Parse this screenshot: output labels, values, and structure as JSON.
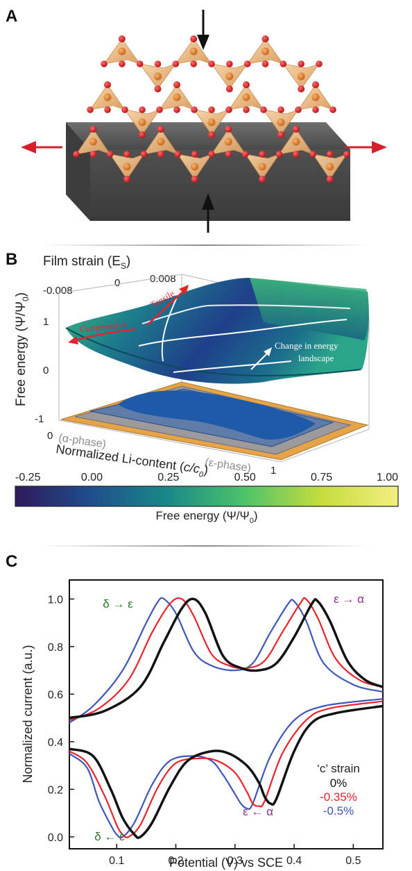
{
  "panels": {
    "a": "A",
    "b": "B",
    "c": "C"
  },
  "panel_b": {
    "film_strain_label": "Film strain (E",
    "film_strain_sub": "S",
    "film_strain_close": ")",
    "strain_ticks": [
      "-0.008",
      "0",
      "0.008"
    ],
    "z_label_main": "Free energy (Ψ/Ψ",
    "z_label_sub": "0",
    "z_label_close": ")",
    "z_ticks": [
      "1",
      "0",
      "-1"
    ],
    "x_tick_0": "0",
    "x_tick_1": "1",
    "alpha_phase": "(α-phase)",
    "epsilon_phase": "(ε-phase)",
    "x_label_main": "Normalized Li-content (",
    "x_label_var": "c/c",
    "x_label_sub": "0",
    "x_label_close": ")",
    "compressive": "Compressive",
    "tensile": "Tensile",
    "change_line1": "Change in energy",
    "change_line2": "landscape"
  },
  "colorbar": {
    "ticks": [
      "-0.25",
      "0.00",
      "0.25",
      "0.50",
      "0.75",
      "1.00"
    ],
    "label_main": "Free energy (Ψ/Ψ",
    "label_sub": "0",
    "label_close": ")",
    "colors": [
      "#2e1a5c",
      "#1f4f8c",
      "#1a8a88",
      "#4ec36a",
      "#c6dd3c",
      "#f3ef80"
    ]
  },
  "chart_data": {
    "type": "line",
    "title": "",
    "xlabel": "Potential (V) vs SCE",
    "ylabel": "Normalized current (a.u.)",
    "xlim": [
      0.02,
      0.55
    ],
    "ylim": [
      -0.05,
      1.08
    ],
    "x_ticks": [
      "0.1",
      "0.2",
      "0.3",
      "0.4",
      "0.5"
    ],
    "y_ticks": [
      "0.0",
      "0.2",
      "0.4",
      "0.6",
      "0.8",
      "1.0"
    ],
    "legend_title": "‘c’ strain",
    "annotations": {
      "delta_eps_top": "δ → ε",
      "eps_alpha_top": "ε → α",
      "delta_eps_bottom": "δ ← ε",
      "eps_alpha_bottom": "ε ← α"
    },
    "series": [
      {
        "name": "0%",
        "color": "#111111",
        "forward": [
          [
            0.02,
            0.5
          ],
          [
            0.08,
            0.53
          ],
          [
            0.14,
            0.63
          ],
          [
            0.18,
            0.82
          ],
          [
            0.21,
            0.96
          ],
          [
            0.23,
            1.0
          ],
          [
            0.25,
            0.94
          ],
          [
            0.28,
            0.76
          ],
          [
            0.31,
            0.71
          ],
          [
            0.34,
            0.7
          ],
          [
            0.37,
            0.73
          ],
          [
            0.4,
            0.84
          ],
          [
            0.43,
            0.98
          ],
          [
            0.44,
            0.99
          ],
          [
            0.46,
            0.91
          ],
          [
            0.49,
            0.74
          ],
          [
            0.52,
            0.66
          ],
          [
            0.55,
            0.63
          ]
        ],
        "reverse": [
          [
            0.02,
            0.37
          ],
          [
            0.06,
            0.34
          ],
          [
            0.09,
            0.2
          ],
          [
            0.11,
            0.08
          ],
          [
            0.13,
            0.01
          ],
          [
            0.14,
            0.0
          ],
          [
            0.16,
            0.06
          ],
          [
            0.19,
            0.21
          ],
          [
            0.22,
            0.32
          ],
          [
            0.26,
            0.36
          ],
          [
            0.29,
            0.35
          ],
          [
            0.32,
            0.3
          ],
          [
            0.34,
            0.23
          ],
          [
            0.35,
            0.17
          ],
          [
            0.36,
            0.14
          ],
          [
            0.37,
            0.16
          ],
          [
            0.4,
            0.36
          ],
          [
            0.43,
            0.48
          ],
          [
            0.47,
            0.52
          ],
          [
            0.55,
            0.55
          ]
        ]
      },
      {
        "name": "-0.35%",
        "color": "#e8232a",
        "forward": [
          [
            0.02,
            0.49
          ],
          [
            0.07,
            0.54
          ],
          [
            0.12,
            0.66
          ],
          [
            0.16,
            0.86
          ],
          [
            0.19,
            0.98
          ],
          [
            0.21,
            1.0
          ],
          [
            0.23,
            0.93
          ],
          [
            0.26,
            0.77
          ],
          [
            0.29,
            0.72
          ],
          [
            0.32,
            0.71
          ],
          [
            0.35,
            0.74
          ],
          [
            0.38,
            0.86
          ],
          [
            0.41,
            0.98
          ],
          [
            0.42,
            1.0
          ],
          [
            0.44,
            0.92
          ],
          [
            0.47,
            0.75
          ],
          [
            0.51,
            0.66
          ],
          [
            0.55,
            0.63
          ]
        ],
        "reverse": [
          [
            0.02,
            0.36
          ],
          [
            0.05,
            0.31
          ],
          [
            0.08,
            0.17
          ],
          [
            0.1,
            0.05
          ],
          [
            0.11,
            0.01
          ],
          [
            0.12,
            0.0
          ],
          [
            0.14,
            0.05
          ],
          [
            0.17,
            0.21
          ],
          [
            0.2,
            0.31
          ],
          [
            0.24,
            0.33
          ],
          [
            0.27,
            0.32
          ],
          [
            0.3,
            0.27
          ],
          [
            0.32,
            0.19
          ],
          [
            0.33,
            0.14
          ],
          [
            0.34,
            0.13
          ],
          [
            0.35,
            0.15
          ],
          [
            0.38,
            0.35
          ],
          [
            0.42,
            0.49
          ],
          [
            0.46,
            0.54
          ],
          [
            0.55,
            0.57
          ]
        ]
      },
      {
        "name": "-0.5%",
        "color": "#3d57b8",
        "forward": [
          [
            0.02,
            0.48
          ],
          [
            0.06,
            0.55
          ],
          [
            0.11,
            0.7
          ],
          [
            0.15,
            0.9
          ],
          [
            0.17,
            0.99
          ],
          [
            0.18,
            1.0
          ],
          [
            0.2,
            0.94
          ],
          [
            0.23,
            0.78
          ],
          [
            0.26,
            0.72
          ],
          [
            0.3,
            0.7
          ],
          [
            0.33,
            0.73
          ],
          [
            0.36,
            0.86
          ],
          [
            0.39,
            0.98
          ],
          [
            0.4,
            0.99
          ],
          [
            0.42,
            0.91
          ],
          [
            0.45,
            0.73
          ],
          [
            0.5,
            0.64
          ],
          [
            0.55,
            0.61
          ]
        ],
        "reverse": [
          [
            0.02,
            0.35
          ],
          [
            0.05,
            0.29
          ],
          [
            0.07,
            0.15
          ],
          [
            0.09,
            0.05
          ],
          [
            0.1,
            0.01
          ],
          [
            0.11,
            0.0
          ],
          [
            0.13,
            0.06
          ],
          [
            0.16,
            0.22
          ],
          [
            0.19,
            0.32
          ],
          [
            0.23,
            0.34
          ],
          [
            0.26,
            0.32
          ],
          [
            0.28,
            0.26
          ],
          [
            0.3,
            0.18
          ],
          [
            0.31,
            0.14
          ],
          [
            0.32,
            0.12
          ],
          [
            0.33,
            0.14
          ],
          [
            0.36,
            0.34
          ],
          [
            0.4,
            0.49
          ],
          [
            0.45,
            0.55
          ],
          [
            0.55,
            0.58
          ]
        ]
      }
    ],
    "annotation_colors": {
      "delta": "#2a7a2a",
      "alpha": "#8a2f8f"
    }
  }
}
